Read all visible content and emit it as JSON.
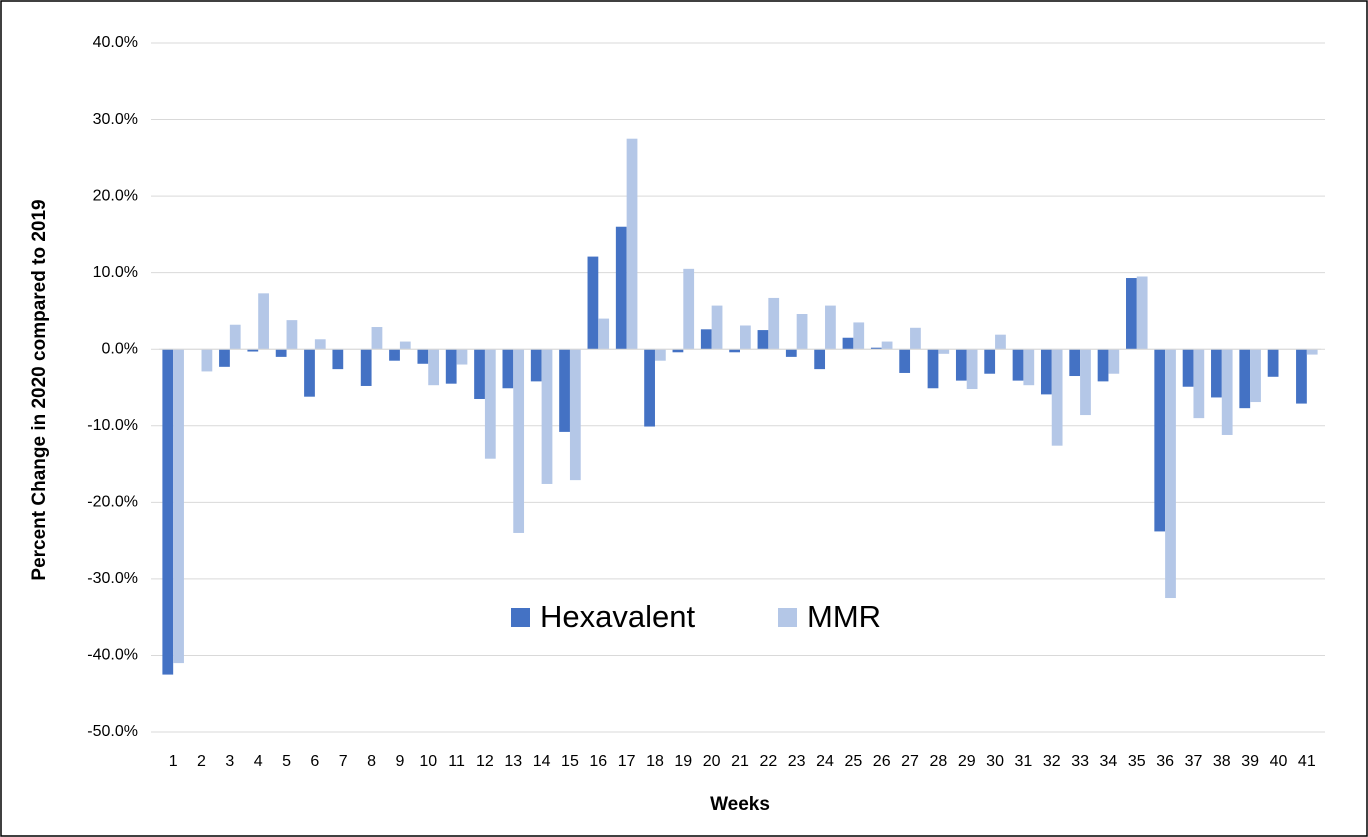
{
  "chart_data": {
    "type": "bar",
    "x_label": "Weeks",
    "y_label": "Percent Change in 2020 compared to 2019",
    "categories": [
      "1",
      "2",
      "3",
      "4",
      "5",
      "6",
      "7",
      "8",
      "9",
      "10",
      "11",
      "12",
      "13",
      "14",
      "15",
      "16",
      "17",
      "18",
      "19",
      "20",
      "21",
      "22",
      "23",
      "24",
      "25",
      "26",
      "27",
      "28",
      "29",
      "30",
      "31",
      "32",
      "33",
      "34",
      "35",
      "36",
      "37",
      "38",
      "39",
      "40",
      "41"
    ],
    "series": [
      {
        "name": "Hexavalent",
        "color": "#4472c4",
        "values": [
          -42.5,
          0,
          -2.3,
          -0.3,
          -1.0,
          -6.2,
          -2.6,
          -4.8,
          -1.5,
          -1.9,
          -4.5,
          -6.5,
          -5.1,
          -4.2,
          -10.8,
          12.1,
          16.0,
          -10.1,
          -0.4,
          2.6,
          -0.4,
          2.5,
          -1.0,
          -2.6,
          1.5,
          0.2,
          -3.1,
          -5.1,
          -4.1,
          -3.2,
          -4.1,
          -5.9,
          -3.5,
          -4.2,
          9.3,
          -23.8,
          -4.9,
          -6.3,
          -7.7,
          -3.6,
          -7.1
        ]
      },
      {
        "name": "MMR",
        "color": "#b4c7e7",
        "values": [
          -41.0,
          -2.9,
          3.2,
          7.3,
          3.8,
          1.3,
          0,
          2.9,
          1.0,
          -4.7,
          -2.0,
          -14.3,
          -24.0,
          -17.6,
          -17.1,
          4.0,
          27.5,
          -1.5,
          10.5,
          5.7,
          3.1,
          6.7,
          4.6,
          5.7,
          3.5,
          1.0,
          2.8,
          -0.6,
          -5.2,
          1.9,
          -4.7,
          -12.6,
          -8.6,
          -3.2,
          9.5,
          -32.5,
          -9.0,
          -11.2,
          -6.9,
          0,
          -0.7
        ]
      }
    ],
    "ylim": [
      -50,
      40
    ],
    "yticks": [
      {
        "value": -50,
        "label": "-50.0%"
      },
      {
        "value": -40,
        "label": "-40.0%"
      },
      {
        "value": -30,
        "label": "-30.0%"
      },
      {
        "value": -20,
        "label": "-20.0%"
      },
      {
        "value": -10,
        "label": "-10.0%"
      },
      {
        "value": 0,
        "label": "0.0%"
      },
      {
        "value": 10,
        "label": "10.0%"
      },
      {
        "value": 20,
        "label": "20.0%"
      },
      {
        "value": 30,
        "label": "30.0%"
      },
      {
        "value": 40,
        "label": "40.0%"
      }
    ],
    "grid": true
  }
}
